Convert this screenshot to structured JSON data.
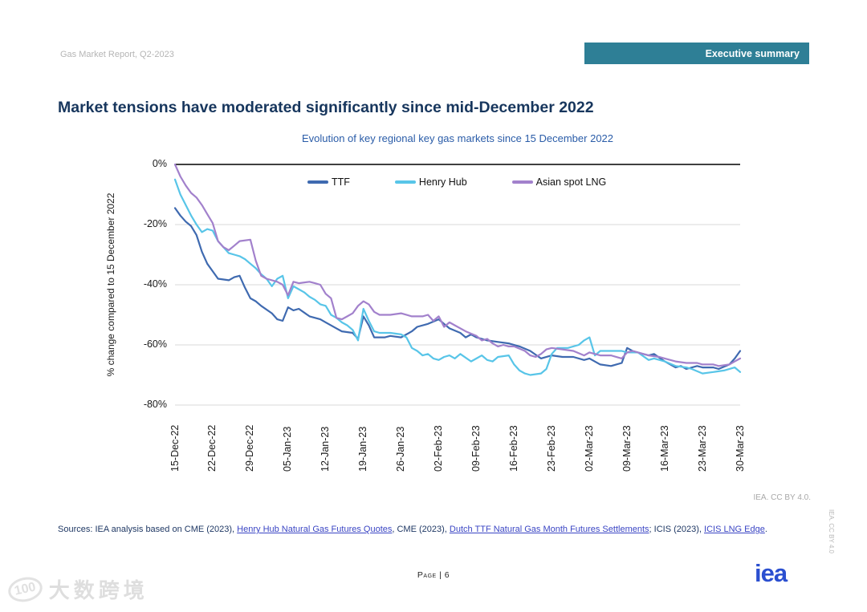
{
  "page": {
    "report_name": "Gas Market Report, Q2-2023",
    "banner_label": "Executive summary",
    "title": "Market tensions have moderated significantly since mid-December 2022",
    "license_note": "IEA. CC BY 4.0.",
    "side_note": "IEA. CC BY 4.0",
    "page_number": "Page | 6",
    "logo_text": "iea",
    "watermark": {
      "logo_text": "100",
      "text": "大数跨境"
    }
  },
  "sources": {
    "segments": [
      {
        "text": "Sources: IEA analysis based on CME (2023), ",
        "link": false
      },
      {
        "text": "Henry Hub Natural Gas Futures Quotes",
        "link": true
      },
      {
        "text": ", CME (2023), ",
        "link": false
      },
      {
        "text": "Dutch TTF Natural Gas Month Futures Settlements",
        "link": true
      },
      {
        "text": "; ICIS (2023), ",
        "link": false
      },
      {
        "text": "ICIS LNG Edge",
        "link": true
      },
      {
        "text": ".",
        "link": false
      }
    ]
  },
  "colors": {
    "banner": "#2e7f96",
    "title": "#17365d",
    "subtitle": "#2a5ca8",
    "axis_text": "#1a1a1a",
    "gridline": "#d9d9d9",
    "zero_line": "#000000",
    "link": "#3a45c4",
    "logo_blue": "#2b4fd0",
    "ttf": "#3f6ab0",
    "henry_hub": "#58c5e8",
    "asian_spot_lng": "#a281cc"
  },
  "chart_data": {
    "type": "line",
    "title": "Evolution of key regional key gas markets since 15 December 2022",
    "ylabel": "% change compared to 15 December 2022",
    "ylim": [
      -80,
      0
    ],
    "y_ticks": [
      {
        "value": 0,
        "label": "0%"
      },
      {
        "value": -20,
        "label": "-20%"
      },
      {
        "value": -40,
        "label": "-40%"
      },
      {
        "value": -60,
        "label": "-60%"
      },
      {
        "value": -80,
        "label": "-80%"
      }
    ],
    "x_unit": "days since 15 December 2022",
    "x_range_days": [
      0,
      105
    ],
    "x_ticks": [
      {
        "day": 0,
        "label": "15-Dec-22"
      },
      {
        "day": 7,
        "label": "22-Dec-22"
      },
      {
        "day": 14,
        "label": "29-Dec-22"
      },
      {
        "day": 21,
        "label": "05-Jan-23"
      },
      {
        "day": 28,
        "label": "12-Jan-23"
      },
      {
        "day": 35,
        "label": "19-Jan-23"
      },
      {
        "day": 42,
        "label": "26-Jan-23"
      },
      {
        "day": 49,
        "label": "02-Feb-23"
      },
      {
        "day": 56,
        "label": "09-Feb-23"
      },
      {
        "day": 63,
        "label": "16-Feb-23"
      },
      {
        "day": 70,
        "label": "23-Feb-23"
      },
      {
        "day": 77,
        "label": "02-Mar-23"
      },
      {
        "day": 84,
        "label": "09-Mar-23"
      },
      {
        "day": 91,
        "label": "16-Mar-23"
      },
      {
        "day": 98,
        "label": "23-Mar-23"
      },
      {
        "day": 105,
        "label": "30-Mar-23"
      }
    ],
    "grid": "horizontal",
    "legend_position": "top-inside",
    "series": [
      {
        "name": "TTF",
        "color": "#3f6ab0",
        "points": [
          [
            0,
            -14.5
          ],
          [
            1,
            -17
          ],
          [
            2,
            -19
          ],
          [
            3,
            -20.5
          ],
          [
            4,
            -23.5
          ],
          [
            5,
            -29
          ],
          [
            6,
            -33
          ],
          [
            7,
            -35.5
          ],
          [
            8,
            -38
          ],
          [
            10,
            -38.5
          ],
          [
            11,
            -37.5
          ],
          [
            12,
            -37
          ],
          [
            13,
            -41
          ],
          [
            14,
            -44.5
          ],
          [
            15,
            -45.5
          ],
          [
            16,
            -47
          ],
          [
            18,
            -49.5
          ],
          [
            19,
            -51.5
          ],
          [
            20,
            -52
          ],
          [
            21,
            -47.5
          ],
          [
            22,
            -48.5
          ],
          [
            23,
            -48
          ],
          [
            25,
            -50.5
          ],
          [
            27,
            -51.5
          ],
          [
            28,
            -52.5
          ],
          [
            30,
            -54.5
          ],
          [
            31,
            -55.5
          ],
          [
            33,
            -56
          ],
          [
            34,
            -58
          ],
          [
            35,
            -50.5
          ],
          [
            36,
            -53.5
          ],
          [
            37,
            -57.5
          ],
          [
            39,
            -57.5
          ],
          [
            40,
            -57
          ],
          [
            42,
            -57.5
          ],
          [
            43,
            -56.5
          ],
          [
            44,
            -55.5
          ],
          [
            45,
            -54
          ],
          [
            47,
            -53
          ],
          [
            49,
            -51.5
          ],
          [
            50,
            -53
          ],
          [
            51,
            -54.5
          ],
          [
            53,
            -56
          ],
          [
            54,
            -57.5
          ],
          [
            55,
            -56.5
          ],
          [
            56,
            -57.5
          ],
          [
            58,
            -58.5
          ],
          [
            60,
            -59
          ],
          [
            62,
            -59.5
          ],
          [
            64,
            -60.5
          ],
          [
            66,
            -62
          ],
          [
            68,
            -64.5
          ],
          [
            70,
            -63.5
          ],
          [
            72,
            -64
          ],
          [
            74,
            -64
          ],
          [
            76,
            -65
          ],
          [
            77,
            -64.5
          ],
          [
            79,
            -66.5
          ],
          [
            81,
            -67
          ],
          [
            83,
            -66
          ],
          [
            84,
            -61
          ],
          [
            85,
            -62
          ],
          [
            87,
            -63
          ],
          [
            88,
            -63.5
          ],
          [
            89,
            -63
          ],
          [
            91,
            -65.5
          ],
          [
            93,
            -67.5
          ],
          [
            94,
            -67
          ],
          [
            95,
            -68
          ],
          [
            97,
            -67
          ],
          [
            98,
            -67.5
          ],
          [
            100,
            -67.5
          ],
          [
            101,
            -68
          ],
          [
            103,
            -66.5
          ],
          [
            104,
            -64.5
          ],
          [
            105,
            -62
          ]
        ]
      },
      {
        "name": "Henry Hub",
        "color": "#58c5e8",
        "points": [
          [
            0,
            -5
          ],
          [
            1,
            -10
          ],
          [
            2,
            -13.5
          ],
          [
            3,
            -17
          ],
          [
            4,
            -20
          ],
          [
            5,
            -22.5
          ],
          [
            6,
            -21.5
          ],
          [
            7,
            -22
          ],
          [
            8,
            -25.5
          ],
          [
            9,
            -27.5
          ],
          [
            10,
            -29.5
          ],
          [
            11,
            -30
          ],
          [
            12,
            -30.5
          ],
          [
            13,
            -31.5
          ],
          [
            14,
            -33
          ],
          [
            15,
            -34.5
          ],
          [
            16,
            -36.5
          ],
          [
            17,
            -38
          ],
          [
            18,
            -40.5
          ],
          [
            19,
            -38
          ],
          [
            20,
            -37
          ],
          [
            21,
            -44.5
          ],
          [
            22,
            -40.5
          ],
          [
            23,
            -41.5
          ],
          [
            24,
            -42.5
          ],
          [
            25,
            -44
          ],
          [
            26,
            -45
          ],
          [
            27,
            -46.5
          ],
          [
            28,
            -47
          ],
          [
            29,
            -50
          ],
          [
            30,
            -51
          ],
          [
            31,
            -52.5
          ],
          [
            32,
            -53.5
          ],
          [
            33,
            -55
          ],
          [
            34,
            -58.5
          ],
          [
            35,
            -48
          ],
          [
            36,
            -52
          ],
          [
            37,
            -55.5
          ],
          [
            38,
            -56
          ],
          [
            40,
            -56
          ],
          [
            42,
            -56.5
          ],
          [
            43,
            -57.5
          ],
          [
            44,
            -61
          ],
          [
            45,
            -62
          ],
          [
            46,
            -63.5
          ],
          [
            47,
            -63
          ],
          [
            48,
            -64.5
          ],
          [
            49,
            -65
          ],
          [
            50,
            -64
          ],
          [
            51,
            -63.5
          ],
          [
            52,
            -64.5
          ],
          [
            53,
            -63
          ],
          [
            55,
            -65.5
          ],
          [
            56,
            -64.5
          ],
          [
            57,
            -63.5
          ],
          [
            58,
            -65
          ],
          [
            59,
            -65.5
          ],
          [
            60,
            -64
          ],
          [
            62,
            -63.5
          ],
          [
            63,
            -66.5
          ],
          [
            64,
            -68.5
          ],
          [
            65,
            -69.5
          ],
          [
            66,
            -70
          ],
          [
            68,
            -69.5
          ],
          [
            69,
            -68
          ],
          [
            70,
            -63
          ],
          [
            71,
            -61
          ],
          [
            73,
            -61
          ],
          [
            75,
            -60
          ],
          [
            76,
            -58.5
          ],
          [
            77,
            -57.5
          ],
          [
            78,
            -63.5
          ],
          [
            79,
            -62
          ],
          [
            81,
            -62
          ],
          [
            83,
            -62
          ],
          [
            84,
            -62.5
          ],
          [
            86,
            -62.5
          ],
          [
            88,
            -65
          ],
          [
            89,
            -64.5
          ],
          [
            91,
            -65.5
          ],
          [
            93,
            -67
          ],
          [
            95,
            -67.5
          ],
          [
            96,
            -68
          ],
          [
            98,
            -69.5
          ],
          [
            100,
            -69
          ],
          [
            102,
            -68.5
          ],
          [
            104,
            -67.5
          ],
          [
            105,
            -69
          ]
        ]
      },
      {
        "name": "Asian spot LNG",
        "color": "#a281cc",
        "points": [
          [
            0,
            0
          ],
          [
            1,
            -4
          ],
          [
            2,
            -7
          ],
          [
            3,
            -9.5
          ],
          [
            4,
            -11
          ],
          [
            5,
            -13.5
          ],
          [
            6,
            -16.5
          ],
          [
            7,
            -19.5
          ],
          [
            8,
            -25.5
          ],
          [
            9,
            -27.5
          ],
          [
            10,
            -28.5
          ],
          [
            11,
            -27
          ],
          [
            12,
            -25.5
          ],
          [
            14,
            -25
          ],
          [
            15,
            -32
          ],
          [
            16,
            -37
          ],
          [
            17,
            -38
          ],
          [
            19,
            -39
          ],
          [
            20,
            -40
          ],
          [
            21,
            -43.5
          ],
          [
            22,
            -39
          ],
          [
            23,
            -39.5
          ],
          [
            25,
            -39
          ],
          [
            26,
            -39.5
          ],
          [
            27,
            -40
          ],
          [
            28,
            -43
          ],
          [
            29,
            -44.5
          ],
          [
            30,
            -51
          ],
          [
            31,
            -51.5
          ],
          [
            32,
            -50.5
          ],
          [
            33,
            -49.5
          ],
          [
            34,
            -47
          ],
          [
            35,
            -45.5
          ],
          [
            36,
            -46.5
          ],
          [
            37,
            -49
          ],
          [
            38,
            -50
          ],
          [
            40,
            -50
          ],
          [
            42,
            -49.5
          ],
          [
            44,
            -50.5
          ],
          [
            46,
            -50.5
          ],
          [
            47,
            -50
          ],
          [
            48,
            -52
          ],
          [
            49,
            -50.5
          ],
          [
            50,
            -54
          ],
          [
            51,
            -52.5
          ],
          [
            52,
            -53.5
          ],
          [
            54,
            -55.5
          ],
          [
            56,
            -57
          ],
          [
            57,
            -58.5
          ],
          [
            58,
            -58
          ],
          [
            59,
            -59.5
          ],
          [
            60,
            -60.5
          ],
          [
            61,
            -60
          ],
          [
            62,
            -60.5
          ],
          [
            63,
            -60.5
          ],
          [
            65,
            -62
          ],
          [
            66,
            -63.5
          ],
          [
            67,
            -64
          ],
          [
            68,
            -63
          ],
          [
            69,
            -61.5
          ],
          [
            70,
            -61
          ],
          [
            72,
            -61.5
          ],
          [
            74,
            -62
          ],
          [
            76,
            -63.5
          ],
          [
            77,
            -62.5
          ],
          [
            79,
            -63.5
          ],
          [
            81,
            -63.5
          ],
          [
            83,
            -64.5
          ],
          [
            84,
            -62.5
          ],
          [
            85,
            -62
          ],
          [
            87,
            -63
          ],
          [
            88,
            -63.5
          ],
          [
            90,
            -64
          ],
          [
            91,
            -64.5
          ],
          [
            93,
            -65.5
          ],
          [
            95,
            -66
          ],
          [
            97,
            -66
          ],
          [
            98,
            -66.5
          ],
          [
            100,
            -66.5
          ],
          [
            101,
            -67
          ],
          [
            103,
            -66.5
          ],
          [
            104,
            -65.5
          ],
          [
            105,
            -64.5
          ]
        ]
      }
    ]
  }
}
